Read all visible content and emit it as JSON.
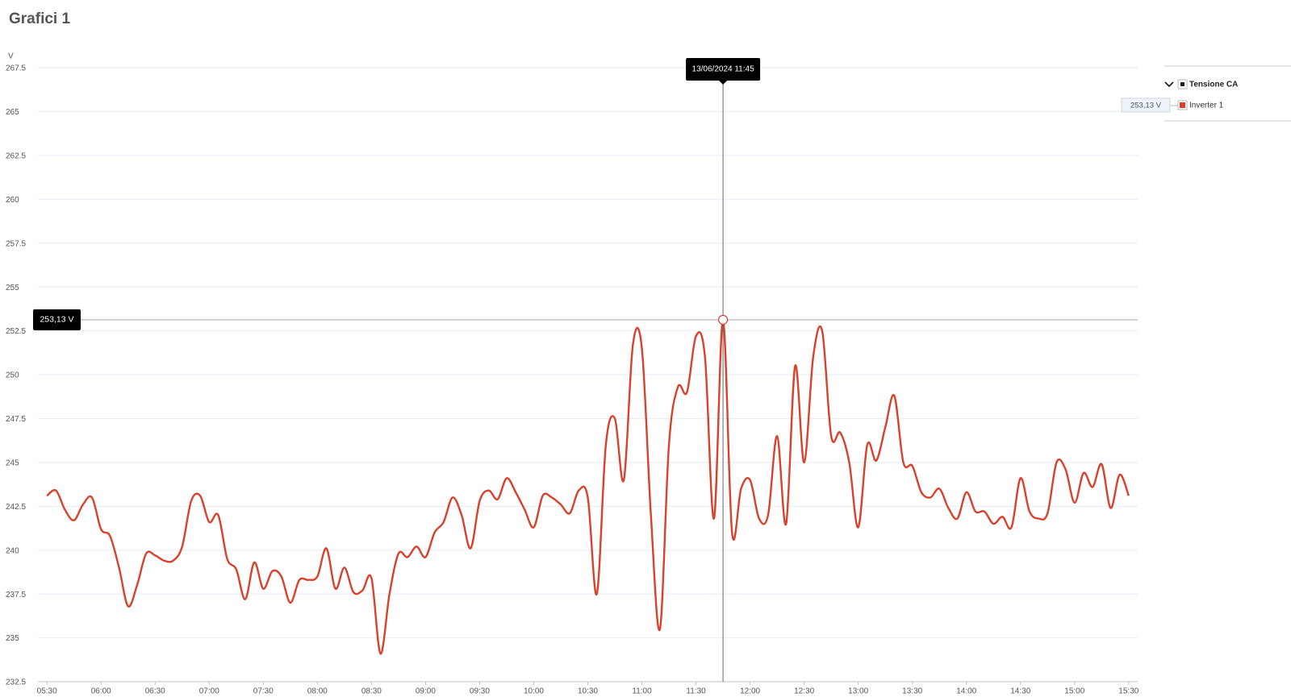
{
  "page": {
    "title": "Grafici 1"
  },
  "chart_data": {
    "type": "line",
    "y_unit": "V",
    "x": [
      330,
      335,
      340,
      345,
      350,
      355,
      360,
      365,
      370,
      375,
      380,
      385,
      390,
      395,
      400,
      405,
      410,
      415,
      420,
      425,
      430,
      435,
      440,
      445,
      450,
      455,
      460,
      465,
      470,
      475,
      480,
      485,
      490,
      495,
      500,
      505,
      510,
      515,
      520,
      525,
      530,
      535,
      540,
      545,
      550,
      555,
      560,
      565,
      570,
      575,
      580,
      585,
      590,
      595,
      600,
      605,
      610,
      615,
      620,
      625,
      630,
      635,
      640,
      645,
      650,
      655,
      660,
      665,
      670,
      675,
      680,
      685,
      690,
      695,
      700,
      705,
      710,
      715,
      720,
      725,
      730,
      735,
      740,
      745,
      750,
      755,
      760,
      765,
      770,
      775,
      780,
      785,
      790,
      795,
      800,
      805,
      810,
      815,
      820,
      825,
      830,
      835,
      840,
      845,
      850,
      855,
      860,
      865,
      870,
      875,
      880,
      885,
      890,
      895,
      900,
      905,
      910,
      915,
      920,
      925,
      930
    ],
    "xlim": [
      325,
      935
    ],
    "xticks": [
      {
        "value": 330,
        "label": "05:30"
      },
      {
        "value": 360,
        "label": "06:00"
      },
      {
        "value": 390,
        "label": "06:30"
      },
      {
        "value": 420,
        "label": "07:00"
      },
      {
        "value": 450,
        "label": "07:30"
      },
      {
        "value": 480,
        "label": "08:00"
      },
      {
        "value": 510,
        "label": "08:30"
      },
      {
        "value": 540,
        "label": "09:00"
      },
      {
        "value": 570,
        "label": "09:30"
      },
      {
        "value": 600,
        "label": "10:00"
      },
      {
        "value": 630,
        "label": "10:30"
      },
      {
        "value": 660,
        "label": "11:00"
      },
      {
        "value": 690,
        "label": "11:30"
      },
      {
        "value": 720,
        "label": "12:00"
      },
      {
        "value": 750,
        "label": "12:30"
      },
      {
        "value": 780,
        "label": "13:00"
      },
      {
        "value": 810,
        "label": "13:30"
      },
      {
        "value": 840,
        "label": "14:00"
      },
      {
        "value": 870,
        "label": "14:30"
      },
      {
        "value": 900,
        "label": "15:00"
      },
      {
        "value": 930,
        "label": "15:30"
      }
    ],
    "ylim": [
      232.5,
      267.5
    ],
    "yticks": [
      232.5,
      235,
      237.5,
      240,
      242.5,
      245,
      247.5,
      250,
      252.5,
      255,
      257.5,
      260,
      262.5,
      265,
      267.5
    ],
    "grid": true,
    "legend_group": "Tensione CA",
    "series": [
      {
        "name": "Inverter 1",
        "color": "#d9412b",
        "values": [
          243.1,
          243.4,
          242.3,
          241.7,
          242.6,
          243.0,
          241.2,
          240.8,
          239.0,
          236.8,
          238.0,
          239.8,
          239.7,
          239.4,
          239.4,
          240.2,
          242.8,
          243.1,
          241.6,
          242.0,
          239.5,
          238.9,
          237.2,
          239.3,
          237.8,
          238.8,
          238.5,
          237.0,
          238.3,
          238.3,
          238.5,
          240.1,
          237.8,
          239.0,
          237.6,
          237.7,
          238.4,
          234.1,
          237.5,
          239.8,
          239.6,
          240.2,
          239.6,
          241.0,
          241.6,
          243.0,
          242.0,
          240.1,
          242.8,
          243.4,
          242.9,
          244.1,
          243.3,
          242.3,
          241.3,
          243.1,
          243.0,
          242.6,
          242.1,
          243.4,
          243.0,
          237.5,
          246.0,
          247.5,
          244.0,
          251.7,
          251.5,
          242.0,
          235.5,
          246.0,
          249.3,
          249.0,
          252.2,
          251.0,
          241.8,
          253.13,
          241.0,
          243.5,
          244.0,
          241.8,
          242.0,
          246.5,
          241.5,
          250.5,
          245.0,
          251.0,
          252.5,
          246.5,
          246.7,
          245.0,
          241.3,
          246.0,
          245.1,
          247.0,
          248.8,
          245.0,
          244.8,
          243.3,
          243.0,
          243.5,
          242.4,
          241.8,
          243.3,
          242.2,
          242.2,
          241.5,
          241.9,
          241.3,
          244.1,
          242.2,
          241.8,
          242.1,
          245.0,
          244.6,
          242.7,
          244.4,
          243.6,
          244.9,
          242.4,
          244.3,
          243.1
        ]
      }
    ],
    "hover": {
      "x": 705,
      "x_label": "13/06/2024 11:45",
      "value": 253.13,
      "value_label": "253,13 V"
    }
  }
}
